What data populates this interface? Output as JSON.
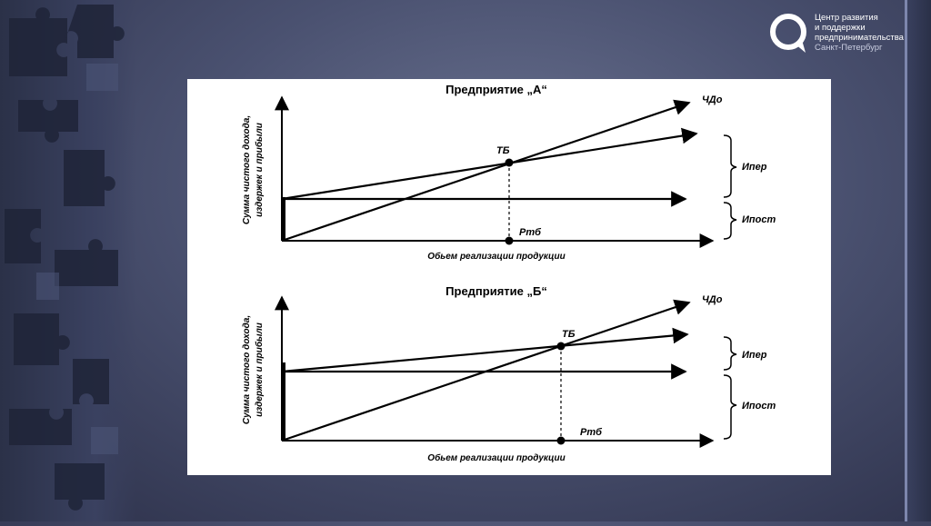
{
  "logo": {
    "icon": "speech-bubble-logo-icon",
    "line1": "Центр развития",
    "line2": "и поддержки",
    "line3": "предпринимательства",
    "line4": "Санкт-Петербург"
  },
  "diagrams": [
    {
      "title": "Предприятие „А“",
      "ylabel_line1": "Сумма чистого дохода,",
      "ylabel_line2": "издержек и прибыли",
      "xlabel": "Обьем реализации продукции",
      "line_chd": "ЧДо",
      "point_tb": "ТБ",
      "point_ptb": "Ртб",
      "bracket_var": "Ипер",
      "bracket_fixed": "Ипост"
    },
    {
      "title": "Предприятие „Б“",
      "ylabel_line1": "Сумма чистого дохода,",
      "ylabel_line2": "издержек и прибыли",
      "xlabel": "Обьем реализации продукции",
      "line_chd": "ЧДо",
      "point_tb": "ТБ",
      "point_ptb": "Ртб",
      "bracket_var": "Ипер",
      "bracket_fixed": "Ипост"
    }
  ]
}
